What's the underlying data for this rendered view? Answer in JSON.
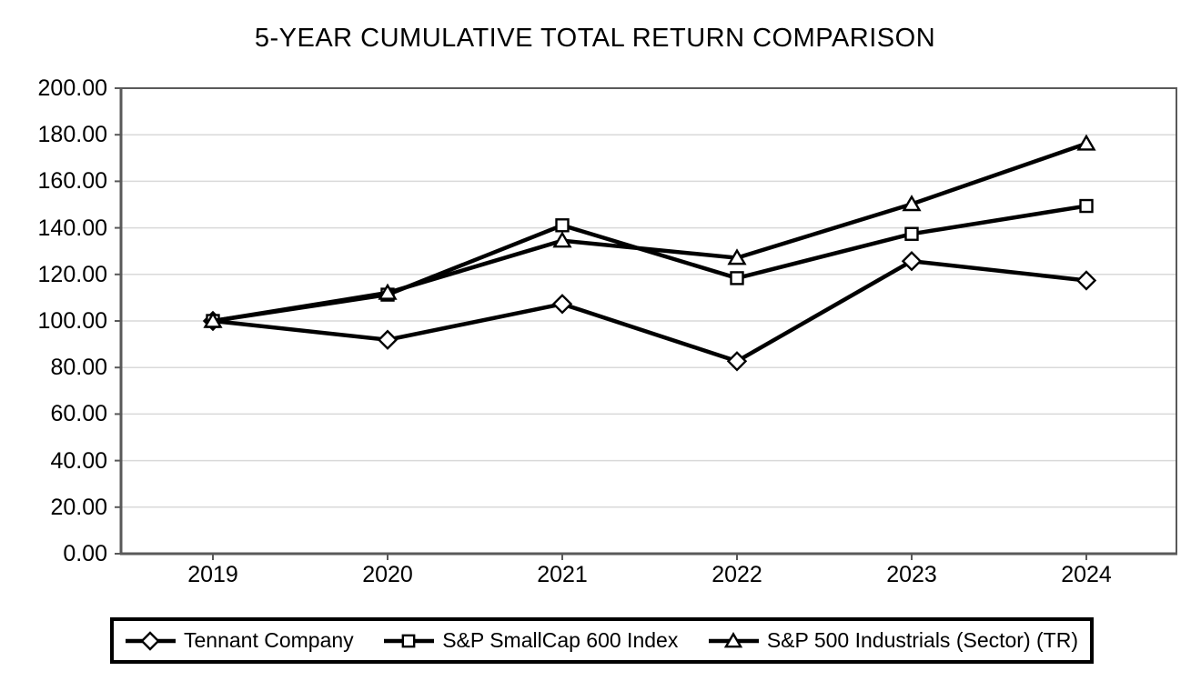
{
  "chart_data": {
    "type": "line",
    "title": "5-YEAR CUMULATIVE TOTAL RETURN COMPARISON",
    "categories": [
      "2019",
      "2020",
      "2021",
      "2022",
      "2023",
      "2024"
    ],
    "series": [
      {
        "name": "Tennant Company",
        "marker": "diamond",
        "values": [
          100.0,
          91.9,
          107.3,
          82.7,
          125.7,
          117.4
        ]
      },
      {
        "name": "S&P SmallCap 600 Index",
        "marker": "square",
        "values": [
          100.0,
          111.3,
          141.1,
          118.4,
          137.4,
          149.4
        ]
      },
      {
        "name": "S&P 500 Industrials (Sector) (TR)",
        "marker": "triangle",
        "values": [
          100.0,
          112.1,
          134.5,
          127.1,
          150.2,
          176.2
        ]
      }
    ],
    "ylim": [
      0,
      200
    ],
    "ytick_step": 20,
    "ytick_labels": [
      "0.00",
      "20.00",
      "40.00",
      "60.00",
      "80.00",
      "100.00",
      "120.00",
      "140.00",
      "160.00",
      "180.00",
      "200.00"
    ],
    "xlabel": "",
    "ylabel": "",
    "grid": true,
    "legend_position": "bottom",
    "colors": {
      "line": "#000000",
      "marker_fill": "#ffffff",
      "gridline": "#d9d9d9",
      "axis": "#595959",
      "text": "#000000",
      "legend_border": "#000000"
    }
  }
}
